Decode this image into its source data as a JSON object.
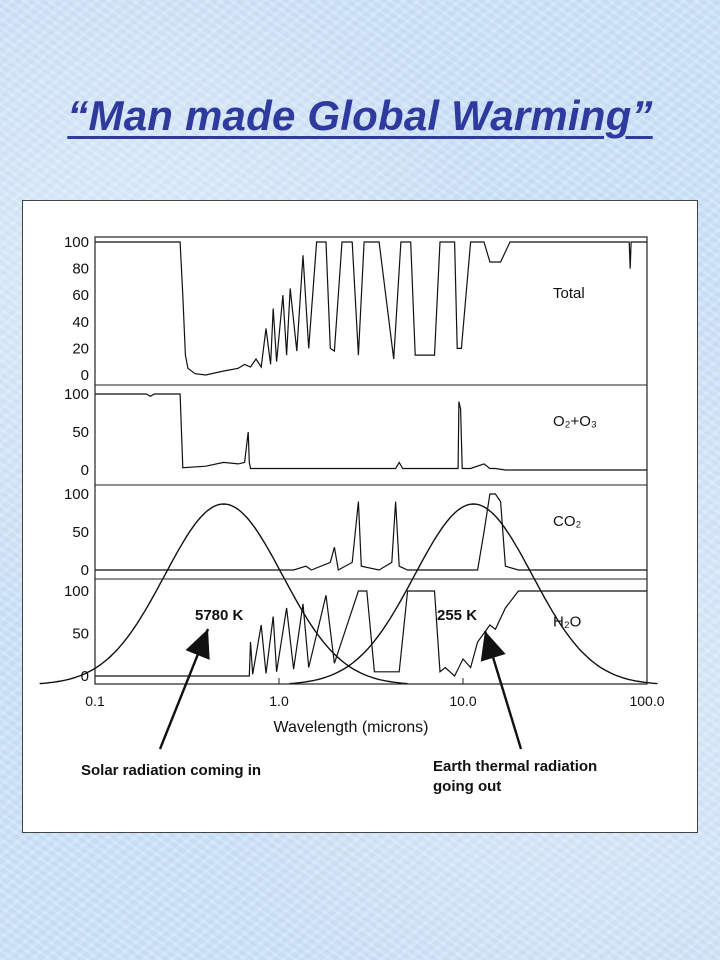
{
  "slide": {
    "title": "“Man made Global Warming”"
  },
  "chart_data": {
    "type": "line",
    "xlabel": "Wavelength (microns)",
    "xscale": "log",
    "xlim": [
      0.1,
      100.0
    ],
    "x_tick_labels": [
      "0.1",
      "1.0",
      "10.0",
      "100.0"
    ],
    "x_ticks": [
      0.1,
      1.0,
      10.0,
      100.0
    ],
    "panels": [
      {
        "name": "Total",
        "y_tick_labels": [
          "100",
          "80",
          "60",
          "40",
          "20",
          "0"
        ],
        "ylim": [
          0,
          100
        ],
        "series": [
          {
            "values": [
              [
                0.1,
                100
              ],
              [
                0.29,
                100
              ],
              [
                0.3,
                60
              ],
              [
                0.31,
                15
              ],
              [
                0.32,
                5
              ],
              [
                0.35,
                1
              ],
              [
                0.4,
                0
              ],
              [
                0.5,
                3
              ],
              [
                0.6,
                5
              ],
              [
                0.65,
                8
              ],
              [
                0.7,
                6
              ],
              [
                0.75,
                12
              ],
              [
                0.8,
                6
              ],
              [
                0.85,
                35
              ],
              [
                0.9,
                8
              ],
              [
                0.93,
                50
              ],
              [
                0.97,
                10
              ],
              [
                1.05,
                60
              ],
              [
                1.1,
                15
              ],
              [
                1.15,
                65
              ],
              [
                1.25,
                18
              ],
              [
                1.35,
                90
              ],
              [
                1.45,
                20
              ],
              [
                1.6,
                100
              ],
              [
                1.8,
                100
              ],
              [
                1.9,
                20
              ],
              [
                2.0,
                18
              ],
              [
                2.2,
                100
              ],
              [
                2.5,
                100
              ],
              [
                2.7,
                15
              ],
              [
                2.9,
                100
              ],
              [
                3.5,
                100
              ],
              [
                4.2,
                12
              ],
              [
                4.6,
                100
              ],
              [
                5.2,
                100
              ],
              [
                5.5,
                15
              ],
              [
                7.0,
                15
              ],
              [
                7.5,
                100
              ],
              [
                9.0,
                100
              ],
              [
                9.3,
                20
              ],
              [
                9.8,
                20
              ],
              [
                11.0,
                100
              ],
              [
                13.0,
                100
              ],
              [
                14.0,
                85
              ],
              [
                16.0,
                85
              ],
              [
                18.0,
                100
              ],
              [
                80.0,
                100
              ],
              [
                81.0,
                80
              ],
              [
                82.0,
                100
              ],
              [
                100.0,
                100
              ]
            ]
          }
        ]
      },
      {
        "name": "O₂+O₃",
        "y_tick_labels": [
          "100",
          "50",
          "0"
        ],
        "ylim": [
          0,
          100
        ],
        "series": [
          {
            "values": [
              [
                0.1,
                100
              ],
              [
                0.19,
                100
              ],
              [
                0.2,
                97
              ],
              [
                0.21,
                100
              ],
              [
                0.29,
                100
              ],
              [
                0.3,
                3
              ],
              [
                0.4,
                5
              ],
              [
                0.5,
                10
              ],
              [
                0.6,
                8
              ],
              [
                0.65,
                10
              ],
              [
                0.68,
                50
              ],
              [
                0.69,
                10
              ],
              [
                0.7,
                2
              ],
              [
                4.3,
                2
              ],
              [
                4.5,
                10
              ],
              [
                4.7,
                2
              ],
              [
                9.4,
                2
              ],
              [
                9.5,
                90
              ],
              [
                9.7,
                80
              ],
              [
                9.9,
                2
              ],
              [
                11.0,
                2
              ],
              [
                13.0,
                8
              ],
              [
                14.0,
                2
              ],
              [
                15.0,
                2
              ],
              [
                17.0,
                0
              ],
              [
                100.0,
                0
              ]
            ]
          }
        ]
      },
      {
        "name": "CO₂",
        "y_tick_labels": [
          "100",
          "50",
          "0"
        ],
        "ylim": [
          0,
          100
        ],
        "series": [
          {
            "values": [
              [
                0.1,
                0
              ],
              [
                1.2,
                0
              ],
              [
                1.4,
                5
              ],
              [
                1.5,
                0
              ],
              [
                1.9,
                10
              ],
              [
                2.0,
                30
              ],
              [
                2.1,
                0
              ],
              [
                2.5,
                10
              ],
              [
                2.7,
                90
              ],
              [
                2.8,
                5
              ],
              [
                3.5,
                0
              ],
              [
                4.1,
                10
              ],
              [
                4.3,
                90
              ],
              [
                4.5,
                5
              ],
              [
                5.0,
                0
              ],
              [
                12.0,
                0
              ],
              [
                13.0,
                50
              ],
              [
                14.0,
                100
              ],
              [
                15.0,
                100
              ],
              [
                16.0,
                90
              ],
              [
                17.0,
                5
              ],
              [
                20.0,
                0
              ],
              [
                100.0,
                0
              ]
            ]
          }
        ]
      },
      {
        "name": "H₂O",
        "y_tick_labels": [
          "100",
          "50",
          "0"
        ],
        "ylim": [
          0,
          100
        ],
        "series": [
          {
            "values": [
              [
                0.1,
                0
              ],
              [
                0.69,
                0
              ],
              [
                0.7,
                40
              ],
              [
                0.72,
                2
              ],
              [
                0.8,
                60
              ],
              [
                0.85,
                3
              ],
              [
                0.93,
                70
              ],
              [
                0.97,
                5
              ],
              [
                1.1,
                80
              ],
              [
                1.2,
                8
              ],
              [
                1.35,
                85
              ],
              [
                1.45,
                10
              ],
              [
                1.8,
                95
              ],
              [
                2.0,
                15
              ],
              [
                2.7,
                100
              ],
              [
                3.0,
                100
              ],
              [
                3.3,
                5
              ],
              [
                4.5,
                5
              ],
              [
                5.0,
                100
              ],
              [
                7.0,
                100
              ],
              [
                7.5,
                5
              ],
              [
                8.0,
                10
              ],
              [
                9.0,
                0
              ],
              [
                10.0,
                20
              ],
              [
                11.0,
                10
              ],
              [
                12.0,
                40
              ],
              [
                14.0,
                60
              ],
              [
                15.0,
                55
              ],
              [
                17.0,
                80
              ],
              [
                20.0,
                100
              ],
              [
                100.0,
                100
              ]
            ]
          }
        ]
      }
    ],
    "blackbody_curves": [
      {
        "label": "5780 K",
        "peak_micron": 0.5
      },
      {
        "label": "255 K",
        "peak_micron": 11.4
      }
    ],
    "annotations": [
      "Solar radiation coming in",
      "Earth thermal radiation going out"
    ]
  }
}
